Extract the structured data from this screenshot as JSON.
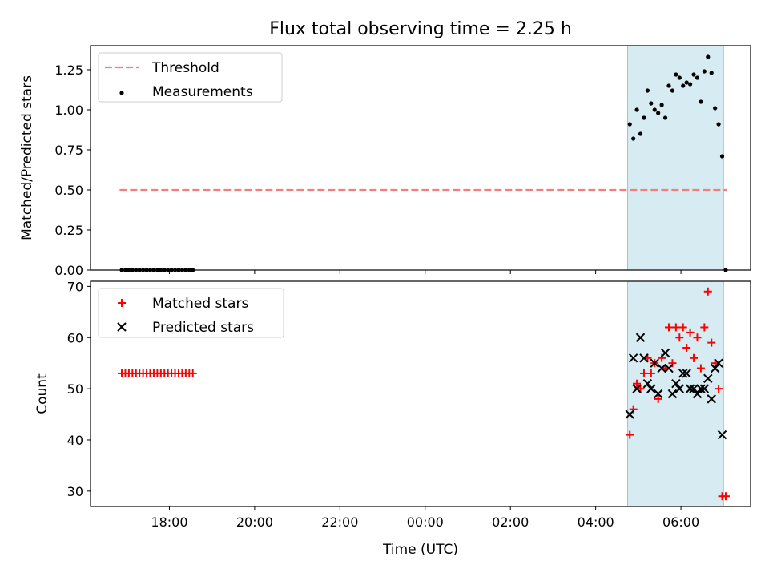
{
  "chart_data": {
    "type": "scatter",
    "title": "Flux total observing time = 2.25 h",
    "xlabel": "Time (UTC)",
    "x_ticks": [
      "18:00",
      "20:00",
      "22:00",
      "00:00",
      "02:00",
      "04:00",
      "06:00"
    ],
    "shaded_interval": [
      "04:45",
      "07:00"
    ],
    "panels": [
      {
        "ylabel": "Matched/Predicted stars",
        "ylim": [
          0,
          1.4
        ],
        "y_ticks": [
          "0.00",
          "0.25",
          "0.50",
          "0.75",
          "1.00",
          "1.25"
        ],
        "legend": {
          "location": "top-left",
          "entries": [
            "Threshold",
            "Measurements"
          ]
        },
        "threshold": {
          "name": "Threshold",
          "value": 0.5,
          "x_range": [
            "16:50",
            "07:05"
          ],
          "color": "#f08080"
        },
        "series": [
          {
            "name": "Measurements",
            "color": "#000000",
            "x": [
              "16:53",
              "16:58",
              "17:03",
              "17:08",
              "17:13",
              "17:18",
              "17:23",
              "17:28",
              "17:33",
              "17:38",
              "17:43",
              "17:48",
              "17:53",
              "17:58",
              "18:03",
              "18:08",
              "18:13",
              "18:18",
              "18:23",
              "18:28",
              "18:33",
              "04:48",
              "04:53",
              "04:58",
              "05:03",
              "05:08",
              "05:13",
              "05:18",
              "05:23",
              "05:28",
              "05:33",
              "05:38",
              "05:43",
              "05:48",
              "05:53",
              "05:58",
              "06:03",
              "06:08",
              "06:13",
              "06:18",
              "06:23",
              "06:28",
              "06:33",
              "06:38",
              "06:43",
              "06:48",
              "06:53",
              "06:58",
              "07:03"
            ],
            "y": [
              0,
              0,
              0,
              0,
              0,
              0,
              0,
              0,
              0,
              0,
              0,
              0,
              0,
              0,
              0,
              0,
              0,
              0,
              0,
              0,
              0,
              0.91,
              0.82,
              1.0,
              0.85,
              0.95,
              1.12,
              1.04,
              1.0,
              0.98,
              1.03,
              0.95,
              1.15,
              1.12,
              1.22,
              1.2,
              1.15,
              1.17,
              1.16,
              1.22,
              1.2,
              1.05,
              1.24,
              1.33,
              1.23,
              1.01,
              0.91,
              0.71,
              0.0
            ]
          }
        ]
      },
      {
        "ylabel": "Count",
        "ylim": [
          27,
          71
        ],
        "y_ticks": [
          "30",
          "40",
          "50",
          "60",
          "70"
        ],
        "legend": {
          "location": "top-left",
          "entries": [
            "Matched stars",
            "Predicted stars"
          ]
        },
        "series": [
          {
            "name": "Matched stars",
            "marker": "plus",
            "color": "#ff0000",
            "x": [
              "16:53",
              "16:58",
              "17:03",
              "17:08",
              "17:13",
              "17:18",
              "17:23",
              "17:28",
              "17:33",
              "17:38",
              "17:43",
              "17:48",
              "17:53",
              "17:58",
              "18:03",
              "18:08",
              "18:13",
              "18:18",
              "18:23",
              "18:28",
              "18:33",
              "04:48",
              "04:53",
              "04:58",
              "05:03",
              "05:08",
              "05:13",
              "05:18",
              "05:23",
              "05:28",
              "05:33",
              "05:38",
              "05:43",
              "05:48",
              "05:53",
              "05:58",
              "06:03",
              "06:08",
              "06:13",
              "06:18",
              "06:23",
              "06:28",
              "06:33",
              "06:38",
              "06:43",
              "06:48",
              "06:53",
              "06:58",
              "07:03"
            ],
            "y": [
              53,
              53,
              53,
              53,
              53,
              53,
              53,
              53,
              53,
              53,
              53,
              53,
              53,
              53,
              53,
              53,
              53,
              53,
              53,
              53,
              53,
              41,
              46,
              51,
              50,
              53,
              56,
              53,
              55,
              48,
              56,
              54,
              62,
              55,
              62,
              60,
              62,
              58,
              61,
              56,
              60,
              54,
              62,
              69,
              59,
              55,
              50,
              29,
              29
            ]
          },
          {
            "name": "Predicted stars",
            "marker": "cross",
            "color": "#000000",
            "x": [
              "04:48",
              "04:53",
              "04:58",
              "05:03",
              "05:08",
              "05:13",
              "05:18",
              "05:23",
              "05:28",
              "05:33",
              "05:38",
              "05:43",
              "05:48",
              "05:53",
              "05:58",
              "06:03",
              "06:08",
              "06:13",
              "06:18",
              "06:23",
              "06:28",
              "06:33",
              "06:38",
              "06:43",
              "06:48",
              "06:53",
              "06:58"
            ],
            "y": [
              45,
              56,
              50,
              60,
              56,
              51,
              50,
              55,
              49,
              54,
              57,
              54,
              49,
              51,
              50,
              53,
              53,
              50,
              50,
              49,
              50,
              50,
              52,
              48,
              54,
              55,
              41
            ]
          }
        ]
      }
    ]
  }
}
